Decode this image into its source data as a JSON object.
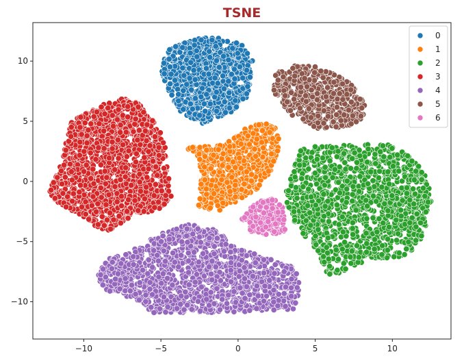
{
  "chart_data": {
    "type": "scatter",
    "title": "TSNE",
    "title_color": "#a52a2a",
    "xlabel": "",
    "ylabel": "",
    "xlim": [
      -13.3,
      13.8
    ],
    "ylim": [
      -13.1,
      13.2
    ],
    "x_ticks": [
      -10,
      -5,
      0,
      5,
      10
    ],
    "y_ticks": [
      -10,
      -5,
      0,
      5,
      10
    ],
    "x_tick_labels": [
      "−10",
      "−5",
      "0",
      "5",
      "10"
    ],
    "y_tick_labels": [
      "−10",
      "−5",
      "0",
      "5",
      "10"
    ],
    "grid": false,
    "legend": "top-right",
    "marker_edge_color": "#ffffff",
    "series": [
      {
        "name": "0",
        "color": "#1f77b4",
        "center": [
          -1.8,
          8.7
        ],
        "spread": [
          2.2,
          3.2
        ],
        "n": 900,
        "hull": [
          [
            -3.0,
            11.8
          ],
          [
            -1.5,
            12.0
          ],
          [
            0.2,
            11.4
          ],
          [
            1.0,
            10.0
          ],
          [
            0.6,
            7.0
          ],
          [
            -0.7,
            5.5
          ],
          [
            -2.4,
            4.8
          ],
          [
            -3.8,
            5.8
          ],
          [
            -4.6,
            7.8
          ],
          [
            -5.0,
            9.1
          ],
          [
            -4.6,
            10.9
          ]
        ]
      },
      {
        "name": "1",
        "color": "#ff7f0e",
        "center": [
          0.6,
          1.0
        ],
        "spread": [
          2.6,
          3.2
        ],
        "n": 700,
        "hull": [
          [
            -3.4,
            2.8
          ],
          [
            -1.0,
            3.0
          ],
          [
            0.5,
            4.5
          ],
          [
            1.6,
            4.9
          ],
          [
            2.4,
            4.5
          ],
          [
            2.7,
            3.4
          ],
          [
            2.4,
            1.5
          ],
          [
            1.6,
            -0.3
          ],
          [
            0.0,
            -1.6
          ],
          [
            -1.2,
            -2.4
          ],
          [
            -2.6,
            -2.2
          ],
          [
            -2.4,
            0.0
          ],
          [
            -2.6,
            2.0
          ]
        ]
      },
      {
        "name": "2",
        "color": "#2ca02c",
        "center": [
          7.6,
          -2.5
        ],
        "spread": [
          4.6,
          5.5
        ],
        "n": 1300,
        "hull": [
          [
            3.6,
            1.0
          ],
          [
            4.0,
            2.8
          ],
          [
            6.5,
            3.0
          ],
          [
            9.8,
            3.1
          ],
          [
            11.0,
            2.2
          ],
          [
            12.2,
            0.6
          ],
          [
            12.6,
            -1.5
          ],
          [
            12.0,
            -4.5
          ],
          [
            11.0,
            -6.2
          ],
          [
            8.5,
            -6.5
          ],
          [
            6.2,
            -7.8
          ],
          [
            5.5,
            -7.6
          ],
          [
            5.2,
            -5.8
          ],
          [
            4.3,
            -4.5
          ],
          [
            3.2,
            -2.5
          ],
          [
            3.0,
            -1.0
          ]
        ]
      },
      {
        "name": "3",
        "color": "#d62728",
        "center": [
          -7.8,
          1.5
        ],
        "spread": [
          4.5,
          5.6
        ],
        "n": 1500,
        "hull": [
          [
            -11.2,
            3.0
          ],
          [
            -10.8,
            5.0
          ],
          [
            -9.0,
            6.2
          ],
          [
            -8.0,
            7.0
          ],
          [
            -6.5,
            6.6
          ],
          [
            -5.5,
            5.2
          ],
          [
            -4.8,
            3.8
          ],
          [
            -4.6,
            1.0
          ],
          [
            -4.3,
            -1.2
          ],
          [
            -5.0,
            -2.4
          ],
          [
            -6.8,
            -2.8
          ],
          [
            -8.6,
            -4.3
          ],
          [
            -10.0,
            -3.0
          ],
          [
            -11.5,
            -2.0
          ],
          [
            -12.3,
            -1.0
          ],
          [
            -11.6,
            1.0
          ]
        ]
      },
      {
        "name": "4",
        "color": "#9467bd",
        "center": [
          -1.8,
          -7.8
        ],
        "spread": [
          7.5,
          4.0
        ],
        "n": 1400,
        "hull": [
          [
            -8.5,
            -6.5
          ],
          [
            -6.5,
            -5.5
          ],
          [
            -5.0,
            -4.3
          ],
          [
            -3.5,
            -3.5
          ],
          [
            -1.5,
            -4.0
          ],
          [
            0.0,
            -5.6
          ],
          [
            2.0,
            -6.4
          ],
          [
            3.8,
            -7.2
          ],
          [
            4.0,
            -9.0
          ],
          [
            3.6,
            -10.6
          ],
          [
            1.5,
            -10.8
          ],
          [
            -1.0,
            -10.9
          ],
          [
            -3.0,
            -10.9
          ],
          [
            -5.5,
            -11.0
          ],
          [
            -6.6,
            -9.8
          ],
          [
            -8.6,
            -9.0
          ],
          [
            -9.2,
            -7.8
          ]
        ]
      },
      {
        "name": "5",
        "color": "#8c564b",
        "center": [
          5.0,
          7.7
        ],
        "spread": [
          2.7,
          2.2
        ],
        "n": 500,
        "hull": [
          [
            2.3,
            7.5
          ],
          [
            2.3,
            8.8
          ],
          [
            3.2,
            9.5
          ],
          [
            4.8,
            9.8
          ],
          [
            6.5,
            8.8
          ],
          [
            7.4,
            8.0
          ],
          [
            8.5,
            6.2
          ],
          [
            7.6,
            4.6
          ],
          [
            5.2,
            4.4
          ],
          [
            3.4,
            5.5
          ]
        ]
      },
      {
        "name": "6",
        "color": "#e377c2",
        "center": [
          1.9,
          -3.2
        ],
        "spread": [
          1.0,
          1.1
        ],
        "n": 180,
        "hull": [
          [
            0.2,
            -3.2
          ],
          [
            0.8,
            -2.2
          ],
          [
            1.8,
            -1.2
          ],
          [
            2.6,
            -1.6
          ],
          [
            3.2,
            -2.8
          ],
          [
            3.1,
            -4.1
          ],
          [
            2.0,
            -4.5
          ],
          [
            0.8,
            -4.2
          ]
        ]
      }
    ]
  }
}
